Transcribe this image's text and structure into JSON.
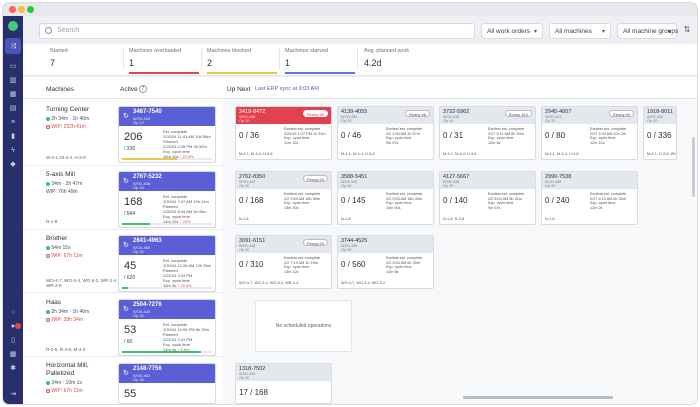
{
  "search": {
    "placeholder": "Search"
  },
  "filters": [
    "All work orders",
    "All machines",
    "All machine groups"
  ],
  "stats": [
    {
      "label": "Started",
      "value": "7"
    },
    {
      "label": "Machines overloaded",
      "value": "1"
    },
    {
      "label": "Machines blocked",
      "value": "2"
    },
    {
      "label": "Machines starved",
      "value": "1"
    },
    {
      "label": "Avg. planned work",
      "value": "4.2d"
    }
  ],
  "headers": {
    "machines": "Machines",
    "active": "Active",
    "active_count": "7",
    "up_next": "Up Next",
    "erp_sync": "Last ERP sync at 9:03 AM"
  },
  "machines": [
    {
      "name": "Turning Center",
      "line": "2h 34m  ·  1h 46m",
      "wip": "WIP: 232h 41m",
      "ops": "M-4-1, M-4-4, H-3-8"
    },
    {
      "name": "5-axis Mill",
      "line": "34m  ·  2h 47m",
      "wip": "WIP: 76h 49m",
      "ops": "N-1-8"
    },
    {
      "name": "Brother",
      "line": "54m 15s",
      "wip": "WIP: 67h 11m",
      "ops": "WO-4-7, WO-3-4, WO-5-2, WR-2-4, WR-3-5"
    },
    {
      "name": "Haas",
      "line": "2h 34m  ·  1h 46m",
      "wip": "WIP: 39h 34m",
      "ops": "R-2-5, R-3-8, M-4-3"
    },
    {
      "name": "Horizontal Mill, Palletized",
      "line": "34m  ·  10m 1s",
      "wip": "WIP: 67h 11m",
      "ops": ""
    }
  ],
  "active": [
    {
      "wo": "3467-7540",
      "sub": "WO0-440",
      "op": "Op 10",
      "count": "206",
      "of": "/ 336",
      "l1": "Est. complete",
      "l2": "2/20/24 11:41 AM 19h 56m",
      "l3": "Planned",
      "l4": "2/20/24 2:45 PM 3h 52m",
      "l5": "Exp. cycle time",
      "l6": "16m 10s",
      "l7": "↓ 22.5%",
      "pct": 0.61,
      "color": "#e6c84a"
    },
    {
      "wo": "2767-5232",
      "sub": "WO0-448",
      "op": "Op 10",
      "count": "168",
      "of": "/ 544",
      "l1": "Est. complete",
      "l2": "2/20/24 7:47 AM 19h 41m",
      "l3": "Planned",
      "l4": "2/20/24 8:34 AM 3h 40m",
      "l5": "Exp. cycle time",
      "l6": "14m 20s",
      "l7": "↑ 23%",
      "pct": 0.31,
      "color": "#3fbf6f"
    },
    {
      "wo": "2641-4963",
      "sub": "WO0-460",
      "op": "Op 20",
      "count": "45",
      "of": "/ 620",
      "l1": "Est. complete",
      "l2": "2/20/24 12:26 AM 12h 26m",
      "l3": "Planned",
      "l4": "2/21/24 3:34 PM",
      "l5": "Exp. cycle time",
      "l6": "15m 3s",
      "l7": "↑ 15.3%",
      "pct": 0.07,
      "color": "#3fbf6f"
    },
    {
      "wo": "2504-7276",
      "sub": "WO0-426",
      "op": "Op 20",
      "count": "53",
      "of": "/ 60",
      "l1": "Est. complete",
      "l2": "2/20/24 12:06 PM 8h 25m",
      "l3": "Planned",
      "l4": "2/21/24 2:41 PM",
      "l5": "Exp. cycle time",
      "l6": "14m 4s",
      "l7": "↑ 5.5%",
      "pct": 0.88,
      "color": "#3fbf6f"
    },
    {
      "wo": "2148-7756",
      "sub": "WO0-462",
      "op": "Op 30",
      "count": "55",
      "of": "",
      "l1": "",
      "l2": "",
      "l3": "",
      "l4": "",
      "l5": "",
      "l6": "",
      "l7": "",
      "pct": 0.0,
      "color": "#3fbf6f"
    }
  ],
  "upnext": [
    {
      "wo": "2419-8472",
      "sub": "WO0-448",
      "op": "Op 20",
      "pill": "Ready #8",
      "count": "0 / 36",
      "i1": "Earliest est. complete",
      "i2": "2/22/24 1:37 PM 1h 31m",
      "i3": "Exp. cycle time",
      "i4": "11m 12s",
      "ops": "M-4-1, M-4-4, H-3-8",
      "red": true
    },
    {
      "wo": "4139-4055",
      "sub": "WO0-434",
      "op": "Op 20",
      "pill": "Ready #8",
      "count": "0 / 46",
      "i1": "Earliest est. complete",
      "i2": "2/2 2:34 AM 2h 57m",
      "i3": "Exp. cycle time",
      "i4": "9m 57s",
      "ops": "M-4-1, M-4-4, H-3-8",
      "red": false
    },
    {
      "wo": "3722-5962",
      "sub": "WO0-440",
      "op": "Op 40",
      "pill": "Ready #10",
      "count": "0 / 31",
      "i1": "Earliest est. complete",
      "i2": "2/27 9:11 AM 6h 39m",
      "i3": "Exp. cycle time",
      "i4": "12m 4s",
      "ops": "M-4-1, M-4-4, H-3-8",
      "red": false
    },
    {
      "wo": "2945-4007",
      "sub": "WO0-443",
      "op": "Op 20",
      "pill": "Ready #6",
      "count": "0 / 80",
      "i1": "Earliest est. complete",
      "i2": "2/27 2:43 AM 10h 2m",
      "i3": "Exp. cycle time",
      "i4": "12m 10s",
      "ops": "M-4-1, M-4-4, H-3-8",
      "red": false
    },
    {
      "wo": "1918-8011",
      "sub": "WO0-452",
      "op": "Op 30",
      "pill": "",
      "count": "0 / 336",
      "i1": "Earliest",
      "i2": "2/2 1:30",
      "i3": "Exp. c",
      "i4": "9m 2s",
      "ops": "M-4-1, H-3-8, WO-4-4",
      "red": false
    },
    {
      "wo": "2762-8350",
      "sub": "WO0-442",
      "op": "Op 10",
      "pill": "Ready #9",
      "count": "0 / 168",
      "i1": "Earliest est. complete",
      "i2": "2/2 2:54 AM 18h 50m",
      "i3": "Exp. cycle time",
      "i4": "15m 30s",
      "ops": "N-1-8",
      "red": false
    },
    {
      "wo": "3588-5451",
      "sub": "WO0-443",
      "op": "Op 40",
      "pill": "",
      "count": "0 / 145",
      "i1": "Earliest est. complete",
      "i2": "2/2 9:53 AM 18h 43m",
      "i3": "Exp. cycle time",
      "i4": "15m 50s",
      "ops": "N-1-8",
      "red": false
    },
    {
      "wo": "4127-5667",
      "sub": "WO0-435",
      "op": "Op 40",
      "pill": "",
      "count": "0 / 140",
      "i1": "Earliest est. complete",
      "i2": "2/2 6:04 AM 6h 41m",
      "i3": "Exp. cycle time",
      "i4": "9m 57s",
      "ops": "N-1-8, R-3-8",
      "red": false
    },
    {
      "wo": "2990-7538",
      "sub": "WO0-448",
      "op": "Op 20",
      "pill": "",
      "count": "0 / 240",
      "i1": "Earliest est. complete",
      "i2": "2/27 6:12 AM 6h 32m",
      "i3": "Exp. cycle time",
      "i4": "12m 2s",
      "ops": "N-1-8",
      "red": false
    },
    {
      "wo": "3091-6151",
      "sub": "WO0-446",
      "op": "Op 20",
      "pill": "Ready #9",
      "count": "0 / 310",
      "i1": "Earliest est. complete",
      "i2": "2/2 7:19 AM 1h 19m",
      "i3": "Exp. cycle time",
      "i4": "13m 12s",
      "ops": "WO-4-7, WO-3-4, WO-5-2, WR-2-4",
      "red": false
    },
    {
      "wo": "3744-4525",
      "sub": "WO0-439",
      "op": "Op 30",
      "pill": "",
      "count": "0 / 560",
      "i1": "Earliest est. complete",
      "i2": "2/2 3:34 AM 6h 30m",
      "i3": "Exp. cycle time",
      "i4": "12m 6s",
      "ops": "WO-4-7, WO-3-4, WO-5-2",
      "red": false
    },
    {
      "wo": "1318-7502",
      "sub": "WO0-444",
      "op": "Op 10",
      "pill": "",
      "count": "17 / 168",
      "i1": "",
      "i2": "",
      "i3": "",
      "i4": "",
      "ops": "",
      "red": false
    }
  ],
  "empty_state": "No scheduled operations",
  "notification_count": "3"
}
